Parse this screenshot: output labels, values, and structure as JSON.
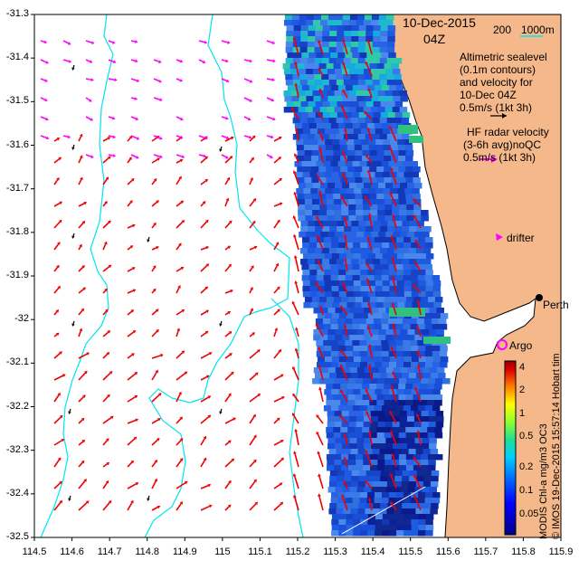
{
  "header": {
    "date": "10-Dec-2015",
    "time": "04Z",
    "bathy_label": "200",
    "bathy_label2": "1000m"
  },
  "legend": {
    "altimetry_line1": "Altimetric sealevel",
    "altimetry_line2": "(0.1m contours)",
    "altimetry_line3": "and velocity for",
    "altimetry_line4": "10-Dec 04Z",
    "altimetry_scale": "0.5m/s (1kt 3h)",
    "hf_line1": "HF radar velocity",
    "hf_line2": "(3-6h avg)noQC",
    "hf_scale": "0.5m/s (1kt 3h)",
    "drifter": "drifter",
    "argo": "Argo",
    "city": "Perth",
    "hobart_tail": "Hobart tim"
  },
  "colorbar": {
    "title": "MODIS Chl-a mg/m3 OC3",
    "ticks": [
      "4",
      "2",
      "1",
      "0.5",
      "0.2",
      "0.1",
      "0.05"
    ],
    "credit": "© IMOS 19-Dec-2015 15:57:14 Hobart tim"
  },
  "axes": {
    "x_ticks": [
      "114.5",
      "114.6",
      "114.7",
      "114.8",
      "114.9",
      "115",
      "115.1",
      "115.2",
      "115.3",
      "115.4",
      "115.5",
      "115.6",
      "115.7",
      "115.8",
      "115.9"
    ],
    "y_ticks": [
      "-31.3",
      "-31.4",
      "-31.5",
      "-31.6",
      "-31.7",
      "-31.8",
      "-31.9",
      "-32",
      "-32.1",
      "-32.2",
      "-32.3",
      "-32.4",
      "-32.5"
    ],
    "lon_range": [
      114.5,
      115.9
    ],
    "lat_range": [
      -32.5,
      -31.3
    ]
  },
  "colors": {
    "land": "#f5b88a",
    "contour": "#00e5ee",
    "altimetry_arrow": "#ee0000",
    "hf_arrow": "#ff00ff",
    "drifter_arrow": "#000000"
  }
}
